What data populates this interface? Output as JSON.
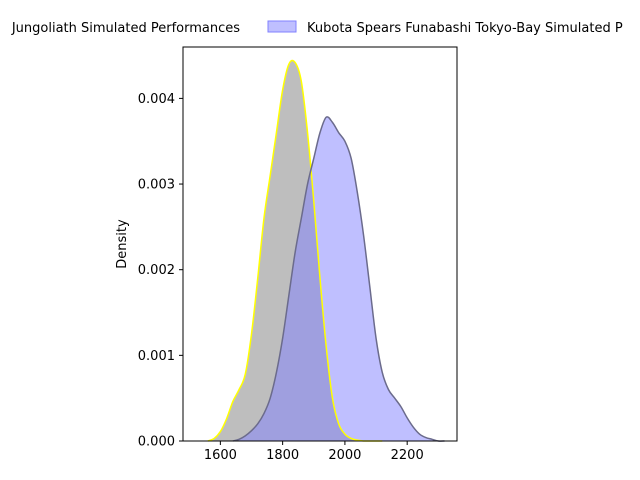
{
  "chart_data": {
    "type": "area",
    "title": "",
    "xlabel": "",
    "ylabel": "Density",
    "xlim": [
      1480,
      2360
    ],
    "ylim": [
      0,
      0.0046
    ],
    "grid": false,
    "legend_position": "top (clipped)",
    "xticks": [
      {
        "value": 1600,
        "label": "1600"
      },
      {
        "value": 1800,
        "label": "1800"
      },
      {
        "value": 2000,
        "label": "2000"
      },
      {
        "value": 2200,
        "label": "2200"
      }
    ],
    "yticks": [
      {
        "value": 0.0,
        "label": "0.000"
      },
      {
        "value": 0.001,
        "label": "0.001"
      },
      {
        "value": 0.002,
        "label": "0.002"
      },
      {
        "value": 0.003,
        "label": "0.003"
      },
      {
        "value": 0.004,
        "label": "0.004"
      }
    ],
    "series": [
      {
        "name": "Jungoliath Simulated Performances",
        "legend_label": "Jungoliath Simulated Performances",
        "fill": "#bebebe",
        "stroke": "#ffff00",
        "x": [
          1560,
          1580,
          1600,
          1620,
          1640,
          1660,
          1680,
          1700,
          1720,
          1740,
          1760,
          1780,
          1800,
          1820,
          1840,
          1860,
          1880,
          1900,
          1920,
          1940,
          1960,
          1980,
          2000,
          2020,
          2040,
          2060,
          2080,
          2100,
          2120
        ],
        "values": [
          0.0,
          3e-05,
          0.00011,
          0.00026,
          0.00046,
          0.0006,
          0.00078,
          0.00125,
          0.0019,
          0.0026,
          0.0031,
          0.0036,
          0.0041,
          0.0044,
          0.00442,
          0.0042,
          0.0036,
          0.0028,
          0.0019,
          0.0011,
          0.0005,
          0.0002,
          8e-05,
          3e-05,
          1e-05,
          0.0,
          0.0,
          0.0,
          0.0
        ]
      },
      {
        "name": "Kubota Spears Funabashi Tokyo-Bay Simulated Performances",
        "legend_label": "Kubota Spears Funabashi Tokyo-Bay Simulated P",
        "fill": "#8080ff",
        "stroke": "#6b6b8c",
        "x": [
          1640,
          1660,
          1680,
          1700,
          1720,
          1740,
          1760,
          1780,
          1800,
          1820,
          1840,
          1860,
          1880,
          1900,
          1920,
          1940,
          1960,
          1980,
          2000,
          2020,
          2040,
          2060,
          2080,
          2100,
          2120,
          2140,
          2160,
          2180,
          2200,
          2220,
          2240,
          2260,
          2280,
          2300,
          2320
        ],
        "values": [
          0.0,
          2e-05,
          6e-05,
          0.00012,
          0.0002,
          0.00032,
          0.0005,
          0.0008,
          0.0012,
          0.0017,
          0.0022,
          0.0026,
          0.003,
          0.0033,
          0.0036,
          0.00378,
          0.00372,
          0.0036,
          0.0035,
          0.0033,
          0.0029,
          0.0024,
          0.0018,
          0.0012,
          0.0008,
          0.0006,
          0.0005,
          0.0004,
          0.00027,
          0.00016,
          8e-05,
          4e-05,
          2e-05,
          0.0,
          0.0
        ]
      }
    ]
  }
}
